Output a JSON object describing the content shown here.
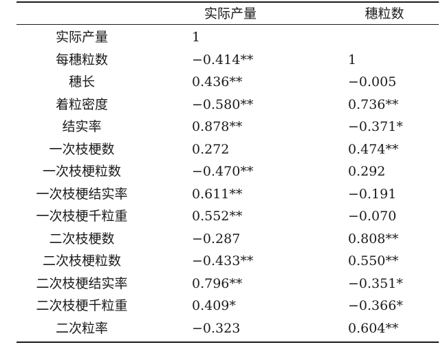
{
  "table": {
    "columns": [
      "",
      "实际产量",
      "穗粒数"
    ],
    "rows": [
      {
        "label": "实际产量",
        "actual": "1",
        "grains": ""
      },
      {
        "label": "每穗粒数",
        "actual": "−0.414**",
        "grains": "1"
      },
      {
        "label": "穗长",
        "actual": "0.436**",
        "grains": "−0.005"
      },
      {
        "label": "着粒密度",
        "actual": "−0.580**",
        "grains": "0.736**"
      },
      {
        "label": "结实率",
        "actual": "0.878**",
        "grains": "−0.371*"
      },
      {
        "label": "一次枝梗数",
        "actual": "0.272",
        "grains": "0.474**"
      },
      {
        "label": "一次枝梗粒数",
        "actual": "−0.470**",
        "grains": "0.292"
      },
      {
        "label": "一次枝梗结实率",
        "actual": "0.611**",
        "grains": "−0.191"
      },
      {
        "label": "一次枝梗千粒重",
        "actual": "0.552**",
        "grains": "−0.070"
      },
      {
        "label": "二次枝梗数",
        "actual": "−0.287",
        "grains": "0.808**"
      },
      {
        "label": "二次枝梗粒数",
        "actual": "−0.433**",
        "grains": "0.550**"
      },
      {
        "label": "二次枝梗结实率",
        "actual": "0.796**",
        "grains": "−0.351*"
      },
      {
        "label": "二次枝梗千粒重",
        "actual": "0.409*",
        "grains": "−0.366*"
      },
      {
        "label": "二次粒率",
        "actual": "−0.323",
        "grains": "0.604**"
      }
    ]
  }
}
